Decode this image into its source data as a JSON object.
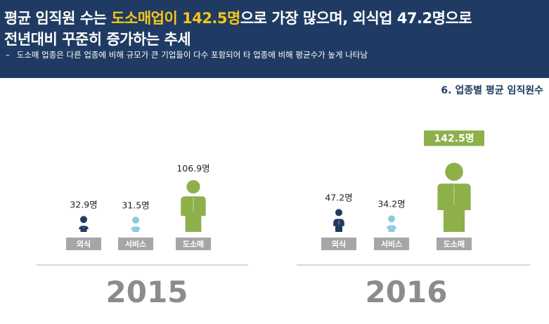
{
  "header": {
    "line1_pre": "평균 임직원 수는 ",
    "line1_highlight": "도소매업이 142.5명",
    "line1_post": "으로 가장 많으며, 외식업 47.2명으로",
    "line2": "전년대비 꾸준히 증가하는 추세",
    "bullet_dash": "–",
    "bullet_text": "도소매 업종은 다른 업종에 비해 규모가 큰 기업들이 다수 포함되어 타 업종에 비해 평균수가 높게 나타남"
  },
  "subtitle": "6. 업종별 평균 임직원수",
  "chart_data": {
    "type": "bar",
    "categories": [
      "외식",
      "서비스",
      "도소매"
    ],
    "series": [
      {
        "name": "2015",
        "values": [
          32.9,
          31.5,
          106.9
        ],
        "labels": [
          "32.9명",
          "31.5명",
          "106.9명"
        ]
      },
      {
        "name": "2016",
        "values": [
          47.2,
          34.2,
          142.5
        ],
        "labels": [
          "47.2명",
          "34.2명",
          "142.5명"
        ]
      }
    ],
    "highlight": {
      "series": "2016",
      "category": "도소매"
    },
    "colors": {
      "외식": "#1f3b63",
      "서비스": "#8ccbe0",
      "도소매": "#8db04a",
      "category_box": "#a6a6a6",
      "highlight_box": "#8db04a",
      "year_text": "#8c8c8c"
    }
  }
}
